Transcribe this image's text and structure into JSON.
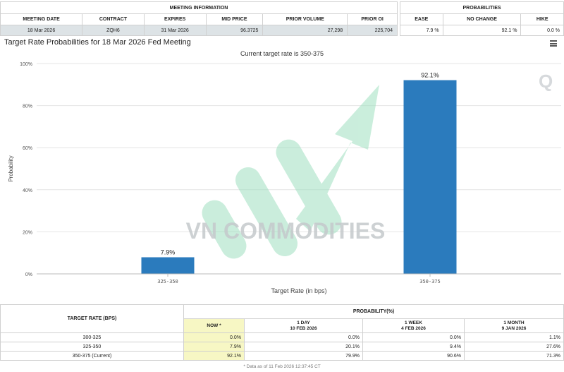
{
  "meeting_info": {
    "section_title": "MEETING INFORMATION",
    "headers": [
      "MEETING DATE",
      "CONTRACT",
      "EXPIRES",
      "MID PRICE",
      "PRIOR VOLUME",
      "PRIOR OI"
    ],
    "values": [
      "18 Mar 2026",
      "ZQH6",
      "31 Mar 2026",
      "96.3725",
      "27,298",
      "225,704"
    ]
  },
  "probabilities": {
    "section_title": "PROBABILITIES",
    "headers": [
      "EASE",
      "NO CHANGE",
      "HIKE"
    ],
    "values": [
      "7.9 %",
      "92.1 %",
      "0.0 %"
    ]
  },
  "chart_title": "Target Rate Probabilities for 18 Mar 2026 Fed Meeting",
  "watermark_text": "VN COMMODITIES",
  "chart_data": {
    "type": "bar",
    "subtitle": "Current target rate is 350-375",
    "categories": [
      "325-350",
      "350-375"
    ],
    "values": [
      7.9,
      92.1
    ],
    "data_labels": [
      "7.9%",
      "92.1%"
    ],
    "xlabel": "Target Rate (in bps)",
    "ylabel": "Probability",
    "ylim": [
      0,
      100
    ],
    "yticks": [
      0,
      20,
      40,
      60,
      80,
      100
    ],
    "ytick_labels": [
      "0%",
      "20%",
      "40%",
      "60%",
      "80%",
      "100%"
    ],
    "bar_color": "#2b7bbd",
    "grid": true
  },
  "rate_table": {
    "target_header": "TARGET RATE (BPS)",
    "prob_header": "PROBABILITY(%)",
    "columns": [
      {
        "line1": "NOW *",
        "line2": ""
      },
      {
        "line1": "1 DAY",
        "line2": "10 FEB 2026"
      },
      {
        "line1": "1 WEEK",
        "line2": "4 FEB 2026"
      },
      {
        "line1": "1 MONTH",
        "line2": "9 JAN 2026"
      }
    ],
    "rows": [
      {
        "rate": "300-325",
        "values": [
          "0.0%",
          "0.0%",
          "0.0%",
          "1.1%"
        ]
      },
      {
        "rate": "325-350",
        "values": [
          "7.9%",
          "20.1%",
          "9.4%",
          "27.6%"
        ]
      },
      {
        "rate": "350-375 (Current)",
        "values": [
          "92.1%",
          "79.9%",
          "90.6%",
          "71.3%"
        ]
      }
    ],
    "footnote": "* Data as of 11 Feb 2026 12:37:45 CT"
  },
  "colors": {
    "accent": "#2b7bbd",
    "now_highlight": "#f7f7c4",
    "header_row": "#dde3e6",
    "watermark_green": "#9fe0c0"
  }
}
